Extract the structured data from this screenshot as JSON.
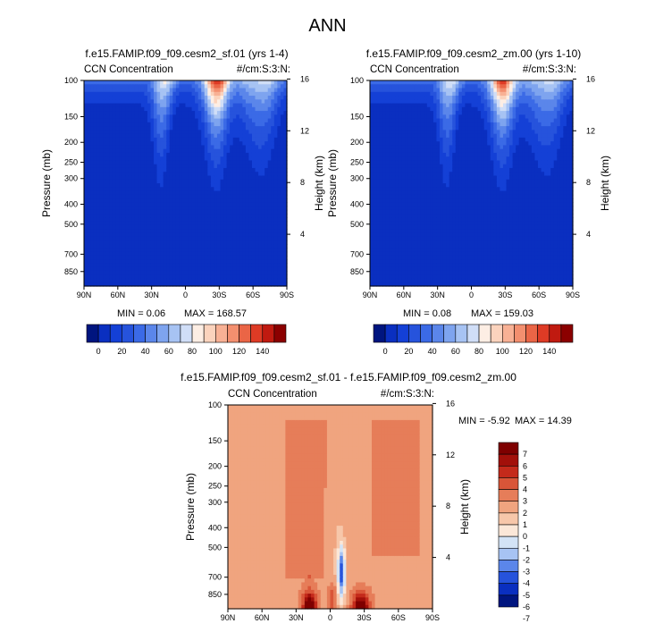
{
  "figure": {
    "title": "ANN"
  },
  "colors": {
    "background": "#ffffff",
    "seq_palette": [
      "#00157f",
      "#0a2fc0",
      "#1440d6",
      "#2653dc",
      "#3b6ae6",
      "#5b86ea",
      "#7ea4ef",
      "#a7c3f3",
      "#d0def7",
      "#fdeee4",
      "#fbd3bd",
      "#f8b195",
      "#f38f6f",
      "#ea6546",
      "#de3b25",
      "#c01a10",
      "#8b0000"
    ],
    "diff_palette": [
      "#00157f",
      "#0a2fc0",
      "#2653dc",
      "#5b86ea",
      "#a7c3f3",
      "#d3e3f6",
      "#fbe7d8",
      "#f7c7aa",
      "#f0a47f",
      "#e67d59",
      "#d95538",
      "#c42a1b",
      "#a2100a",
      "#7e0000"
    ]
  },
  "chart_data": [
    {
      "type": "heatmap",
      "panel": "top-left",
      "title": "f.e15.FAMIP.f09_f09.cesm2_sf.01 (yrs 1-4)",
      "left_label": "CCN Concentration",
      "right_label": "#/cm:S:3:N:",
      "xlabel": "",
      "ylabel": "Pressure (mb)",
      "ylabel_right": "Height (km)",
      "x_ticks": [
        "90N",
        "60N",
        "30N",
        "0",
        "30S",
        "60S",
        "90S"
      ],
      "y_ticks": [
        "100",
        "150",
        "200",
        "250",
        "300",
        "400",
        "500",
        "700",
        "850"
      ],
      "y_ticks_right": [
        "16",
        "12",
        "8",
        "4"
      ],
      "ylim": [
        1000,
        100
      ],
      "min_label": "MIN =   0.06",
      "max_label": "MAX = 168.57",
      "levels": [
        0,
        10,
        20,
        30,
        40,
        50,
        60,
        70,
        80,
        90,
        100,
        110,
        120,
        130,
        140
      ],
      "colorbar_labels": [
        "0",
        "20",
        "40",
        "60",
        "80",
        "100",
        "120",
        "140"
      ]
    },
    {
      "type": "heatmap",
      "panel": "top-right",
      "title": "f.e15.FAMIP.f09_f09.cesm2_zm.00 (yrs 1-10)",
      "left_label": "CCN Concentration",
      "right_label": "#/cm:S:3:N:",
      "xlabel": "",
      "ylabel": "Pressure (mb)",
      "ylabel_right": "Height (km)",
      "x_ticks": [
        "90N",
        "60N",
        "30N",
        "0",
        "30S",
        "60S",
        "90S"
      ],
      "y_ticks": [
        "100",
        "150",
        "200",
        "250",
        "300",
        "400",
        "500",
        "700",
        "850"
      ],
      "y_ticks_right": [
        "16",
        "12",
        "8",
        "4"
      ],
      "ylim": [
        1000,
        100
      ],
      "min_label": "MIN =   0.08",
      "max_label": "MAX = 159.03",
      "levels": [
        0,
        10,
        20,
        30,
        40,
        50,
        60,
        70,
        80,
        90,
        100,
        110,
        120,
        130,
        140
      ],
      "colorbar_labels": [
        "0",
        "20",
        "40",
        "60",
        "80",
        "100",
        "120",
        "140"
      ]
    },
    {
      "type": "heatmap",
      "panel": "bottom",
      "title": "f.e15.FAMIP.f09_f09.cesm2_sf.01 - f.e15.FAMIP.f09_f09.cesm2_zm.00",
      "left_label": "CCN Concentration",
      "right_label": "#/cm:S:3:N:",
      "xlabel": "",
      "ylabel": "Pressure (mb)",
      "ylabel_right": "Height (km)",
      "x_ticks": [
        "90N",
        "60N",
        "30N",
        "0",
        "30S",
        "60S",
        "90S"
      ],
      "y_ticks": [
        "100",
        "150",
        "200",
        "250",
        "300",
        "400",
        "500",
        "700",
        "850"
      ],
      "y_ticks_right": [
        "16",
        "12",
        "8",
        "4"
      ],
      "ylim": [
        1000,
        100
      ],
      "min_label": "MIN =  -5.92",
      "max_label": "MAX =  14.39",
      "levels": [
        -7,
        -6,
        -5,
        -4,
        -3,
        -2,
        -1,
        0,
        1,
        2,
        3,
        4,
        5,
        6,
        7
      ],
      "colorbar_labels": [
        "7",
        "6",
        "5",
        "4",
        "3",
        "2",
        "1",
        "0",
        "-1",
        "-2",
        "-3",
        "-4",
        "-5",
        "-6",
        "-7"
      ]
    }
  ]
}
